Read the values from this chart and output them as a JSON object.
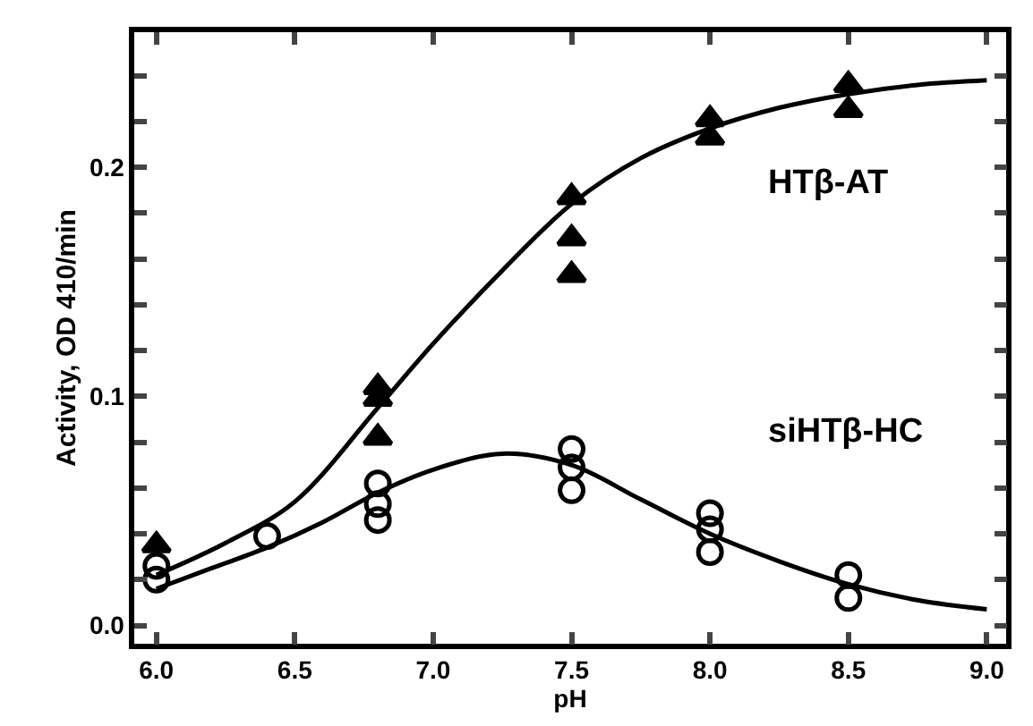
{
  "chart_data": {
    "type": "scatter",
    "xlabel": "pH",
    "ylabel": "Activity, OD 410/min",
    "xlim": [
      5.92,
      9.07
    ],
    "ylim": [
      -0.008,
      0.259
    ],
    "xticks": [
      {
        "value": 6,
        "label": "6.0"
      },
      6.5,
      {
        "value": 7,
        "label": "7.0"
      },
      7.5,
      {
        "value": 8,
        "label": "8.0"
      },
      8.5,
      {
        "value": 9,
        "label": "9.0"
      }
    ],
    "yticks": [
      {
        "value": 0,
        "label": "0.0"
      },
      {
        "value": 0.02,
        "label": null
      },
      {
        "value": 0.04,
        "label": null
      },
      {
        "value": 0.06,
        "label": null
      },
      {
        "value": 0.08,
        "label": null
      },
      {
        "value": 0.1,
        "label": "0.1"
      },
      {
        "value": 0.12,
        "label": null
      },
      {
        "value": 0.14,
        "label": null
      },
      {
        "value": 0.16,
        "label": null
      },
      {
        "value": 0.18,
        "label": null
      },
      {
        "value": 0.2,
        "label": "0.2"
      },
      {
        "value": 0.22,
        "label": null
      },
      {
        "value": 0.24,
        "label": null
      }
    ],
    "series": [
      {
        "marker": "triangle",
        "color": "#000000",
        "x": [
          6.0,
          6.8,
          6.8,
          6.8,
          7.5,
          7.5,
          7.5,
          8.0,
          8.0,
          8.5,
          8.5
        ],
        "values": [
          0.035,
          0.104,
          0.099,
          0.082,
          0.187,
          0.169,
          0.153,
          0.221,
          0.213,
          0.236,
          0.225
        ]
      },
      {
        "marker": "circle",
        "color": "#000000",
        "x": [
          6.0,
          6.0,
          6.4,
          6.8,
          6.8,
          6.8,
          7.5,
          7.5,
          7.5,
          8.0,
          8.0,
          8.0,
          8.5,
          8.5
        ],
        "values": [
          0.026,
          0.02,
          0.039,
          0.062,
          0.053,
          0.046,
          0.077,
          0.069,
          0.059,
          0.049,
          0.042,
          0.032,
          0.022,
          0.012
        ]
      },
      {
        "type": "line",
        "color": "#000000",
        "x": [
          6.0,
          6.25,
          6.5,
          6.8,
          7.0,
          7.25,
          7.5,
          7.75,
          8.0,
          8.25,
          8.5,
          8.75,
          9.0
        ],
        "values": [
          0.022,
          0.036,
          0.054,
          0.095,
          0.123,
          0.155,
          0.184,
          0.204,
          0.217,
          0.226,
          0.232,
          0.236,
          0.238
        ]
      },
      {
        "type": "line",
        "color": "#000000",
        "x": [
          6.0,
          6.2,
          6.4,
          6.6,
          6.8,
          7.0,
          7.25,
          7.5,
          7.75,
          8.0,
          8.25,
          8.5,
          8.75,
          9.0
        ],
        "values": [
          0.016,
          0.025,
          0.034,
          0.045,
          0.058,
          0.068,
          0.075,
          0.07,
          0.055,
          0.04,
          0.028,
          0.018,
          0.011,
          0.007
        ]
      }
    ],
    "annotations": [
      "HTβ-AT",
      "siHTβ-HC"
    ]
  }
}
